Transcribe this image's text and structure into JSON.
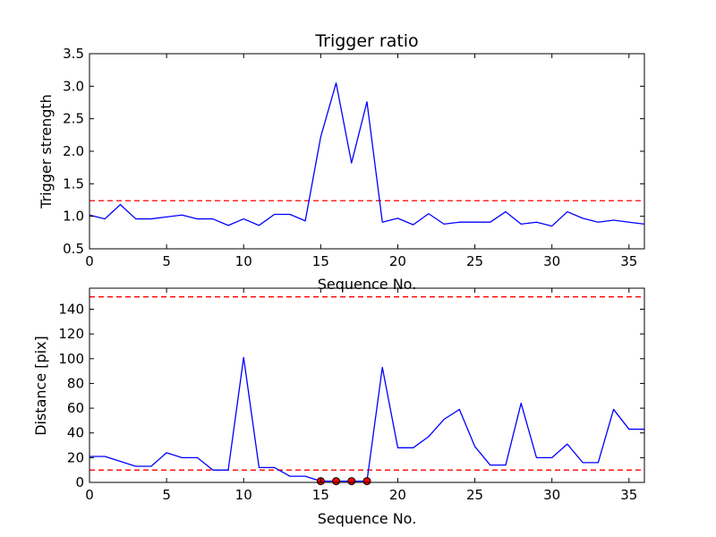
{
  "chart_data": [
    {
      "type": "line",
      "title": "Trigger ratio",
      "xlabel": "Sequence No.",
      "ylabel": "Trigger strength",
      "xlim": [
        0,
        36
      ],
      "ylim": [
        0.5,
        3.5
      ],
      "xticks": [
        0,
        5,
        10,
        15,
        20,
        25,
        30,
        35
      ],
      "yticks": [
        0.5,
        1.0,
        1.5,
        2.0,
        2.5,
        3.0,
        3.5
      ],
      "ytick_labels": [
        "0.5",
        "1.0",
        "1.5",
        "2.0",
        "2.5",
        "3.0",
        "3.5"
      ],
      "grid": false,
      "series": [
        {
          "color": "#0000ff",
          "x": [
            0,
            1,
            2,
            3,
            4,
            5,
            6,
            7,
            8,
            9,
            10,
            11,
            12,
            13,
            14,
            15,
            16,
            17,
            18,
            19,
            20,
            21,
            22,
            23,
            24,
            25,
            26,
            27,
            28,
            29,
            30,
            31,
            32,
            33,
            34,
            35,
            36
          ],
          "y": [
            1.02,
            0.96,
            1.18,
            0.96,
            0.96,
            0.99,
            1.02,
            0.96,
            0.96,
            0.86,
            0.96,
            0.86,
            1.03,
            1.03,
            0.93,
            2.22,
            3.05,
            1.82,
            2.76,
            0.91,
            0.97,
            0.87,
            1.04,
            0.88,
            0.91,
            0.91,
            0.91,
            1.07,
            0.88,
            0.91,
            0.85,
            1.07,
            0.97,
            0.91,
            0.94,
            0.91,
            0.88
          ]
        }
      ],
      "hlines": [
        {
          "y": 1.24,
          "color": "#ff0000",
          "style": "dashed"
        }
      ]
    },
    {
      "type": "line",
      "title": "",
      "xlabel": "Sequence No.",
      "ylabel": "Distance [pix]",
      "xlim": [
        0,
        36
      ],
      "ylim": [
        0,
        157
      ],
      "xticks": [
        0,
        5,
        10,
        15,
        20,
        25,
        30,
        35
      ],
      "yticks": [
        0,
        20,
        40,
        60,
        80,
        100,
        120,
        140
      ],
      "ytick_labels": [
        "0",
        "20",
        "40",
        "60",
        "80",
        "100",
        "120",
        "140"
      ],
      "grid": false,
      "series": [
        {
          "color": "#0000ff",
          "x": [
            0,
            1,
            2,
            3,
            4,
            5,
            6,
            7,
            8,
            9,
            10,
            11,
            12,
            13,
            14,
            15,
            16,
            17,
            18,
            19,
            20,
            21,
            22,
            23,
            24,
            25,
            26,
            27,
            28,
            29,
            30,
            31,
            32,
            33,
            34,
            35,
            36
          ],
          "y": [
            21,
            21,
            17,
            13,
            13,
            24,
            20,
            20,
            10,
            10,
            101,
            12,
            12,
            5,
            5,
            1,
            1,
            1,
            1,
            93,
            28,
            28,
            37,
            51,
            59,
            29,
            14,
            14,
            64,
            20,
            20,
            31,
            16,
            16,
            59,
            43,
            43
          ]
        }
      ],
      "hlines": [
        {
          "y": 150,
          "color": "#ff0000",
          "style": "dashed"
        },
        {
          "y": 10,
          "color": "#ff0000",
          "style": "dashed"
        }
      ],
      "markers": {
        "color": "#ff0000",
        "x": [
          15,
          16,
          17,
          18
        ],
        "y": [
          1,
          1,
          1,
          1
        ]
      }
    }
  ]
}
